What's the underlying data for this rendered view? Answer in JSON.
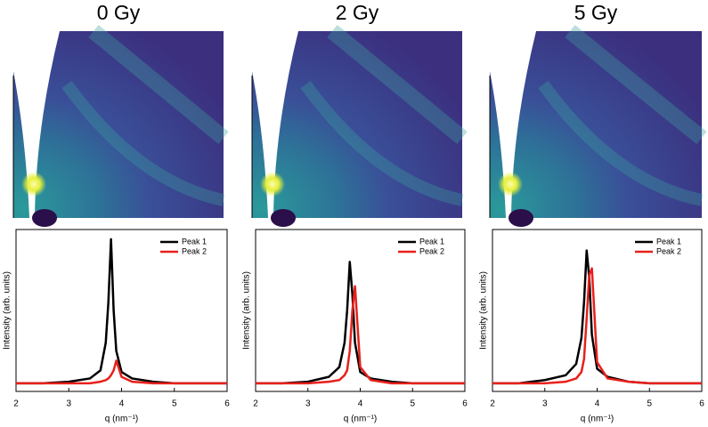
{
  "chart_data": [
    {
      "type": "line",
      "title": "0 Gy",
      "x_label": "q (nm⁻¹)",
      "y_label": "Intensity (arb. units)",
      "x": [
        2,
        2.5,
        3,
        3.4,
        3.6,
        3.7,
        3.75,
        3.8,
        3.85,
        3.9,
        4.0,
        4.2,
        4.6,
        5,
        6
      ],
      "series": [
        {
          "name": "Peak 1",
          "color": "#000000",
          "values": [
            0.05,
            0.05,
            0.06,
            0.08,
            0.13,
            0.3,
            0.55,
            0.94,
            0.5,
            0.25,
            0.12,
            0.08,
            0.06,
            0.05,
            0.05
          ]
        },
        {
          "name": "Peak 2",
          "color": "#e8201b",
          "values": [
            0.05,
            0.05,
            0.05,
            0.05,
            0.06,
            0.07,
            0.08,
            0.1,
            0.13,
            0.19,
            0.09,
            0.06,
            0.05,
            0.05,
            0.05
          ]
        }
      ],
      "xlim": [
        2,
        6
      ],
      "xticks": [
        2,
        3,
        4,
        5,
        6
      ],
      "ylim": [
        0,
        1
      ],
      "legend": "upper right"
    },
    {
      "type": "line",
      "title": "2 Gy",
      "x_label": "q (nm⁻¹)",
      "y_label": "Intensity (arb. units)",
      "x": [
        2,
        2.5,
        3,
        3.4,
        3.6,
        3.7,
        3.75,
        3.8,
        3.85,
        3.9,
        4.0,
        4.2,
        4.6,
        5,
        6
      ],
      "series": [
        {
          "name": "Peak 1",
          "color": "#000000",
          "values": [
            0.05,
            0.05,
            0.06,
            0.09,
            0.15,
            0.3,
            0.5,
            0.8,
            0.6,
            0.3,
            0.12,
            0.08,
            0.06,
            0.05,
            0.05
          ]
        },
        {
          "name": "Peak 2",
          "color": "#e8201b",
          "values": [
            0.05,
            0.05,
            0.05,
            0.06,
            0.07,
            0.1,
            0.13,
            0.25,
            0.5,
            0.65,
            0.15,
            0.07,
            0.05,
            0.05,
            0.05
          ]
        }
      ],
      "xlim": [
        2,
        6
      ],
      "xticks": [
        2,
        3,
        4,
        5,
        6
      ],
      "ylim": [
        0,
        1
      ],
      "legend": "upper right"
    },
    {
      "type": "line",
      "title": "5 Gy",
      "x_label": "q (nm⁻¹)",
      "y_label": "Intensity (arb. units)",
      "x": [
        2,
        2.5,
        3,
        3.4,
        3.6,
        3.7,
        3.75,
        3.8,
        3.85,
        3.9,
        4.0,
        4.2,
        4.6,
        5,
        6
      ],
      "series": [
        {
          "name": "Peak 1",
          "color": "#000000",
          "values": [
            0.05,
            0.05,
            0.07,
            0.1,
            0.17,
            0.33,
            0.55,
            0.87,
            0.7,
            0.35,
            0.14,
            0.09,
            0.06,
            0.05,
            0.05
          ]
        },
        {
          "name": "Peak 2",
          "color": "#e8201b",
          "values": [
            0.05,
            0.05,
            0.05,
            0.06,
            0.08,
            0.12,
            0.2,
            0.45,
            0.72,
            0.76,
            0.18,
            0.08,
            0.06,
            0.05,
            0.05
          ]
        }
      ],
      "xlim": [
        2,
        6
      ],
      "xticks": [
        2,
        3,
        4,
        5,
        6
      ],
      "ylim": [
        0,
        1
      ],
      "legend": "upper right"
    }
  ]
}
